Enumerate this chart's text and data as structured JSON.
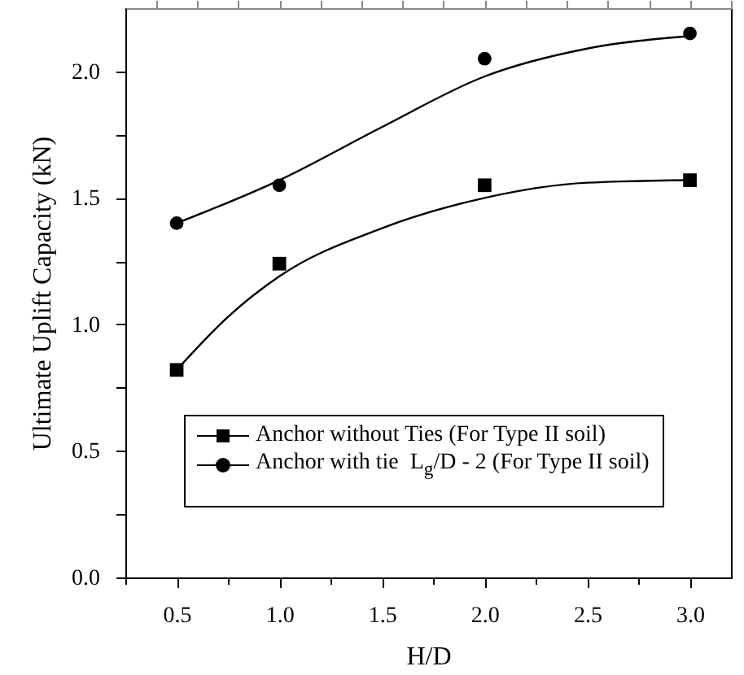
{
  "chart_data": {
    "type": "scatter",
    "xlabel": "H/D",
    "ylabel": "Ultimate Uplift Capacity (kN)",
    "xlim": [
      0.25,
      3.2
    ],
    "ylim": [
      0,
      2.25
    ],
    "xticks": [
      {
        "value": 0.25,
        "label": null
      },
      {
        "value": 0.5,
        "label": "0.5"
      },
      {
        "value": 0.75,
        "label": null
      },
      {
        "value": 1,
        "label": "1.0"
      },
      {
        "value": 1.25,
        "label": null
      },
      {
        "value": 1.5,
        "label": "1.5"
      },
      {
        "value": 1.75,
        "label": null
      },
      {
        "value": 2,
        "label": "2.0"
      },
      {
        "value": 2.25,
        "label": null
      },
      {
        "value": 2.5,
        "label": "2.5"
      },
      {
        "value": 2.75,
        "label": null
      },
      {
        "value": 3,
        "label": "3.0"
      }
    ],
    "yticks": [
      {
        "value": 0,
        "label": "0.0"
      },
      {
        "value": 0.25,
        "label": null
      },
      {
        "value": 0.5,
        "label": "0.5"
      },
      {
        "value": 0.75,
        "label": null
      },
      {
        "value": 1,
        "label": "1.0"
      },
      {
        "value": 1.25,
        "label": null
      },
      {
        "value": 1.5,
        "label": "1.5"
      },
      {
        "value": 1.75,
        "label": null
      },
      {
        "value": 2,
        "label": "2.0"
      }
    ],
    "legend": "bottom",
    "series": [
      {
        "name": "Anchor without Ties (For Type II soil)",
        "type": "scatter",
        "marker": "square",
        "color": "#000000",
        "x": [
          0.5,
          1.0,
          2.0,
          3.0
        ],
        "values": [
          0.82,
          1.24,
          1.55,
          1.57
        ]
      },
      {
        "name": "Anchor with tie  L$_{g}$/D - 2 (For Type II soil)",
        "type": "scatter",
        "marker": "circle",
        "color": "#000000",
        "x": [
          0.5,
          1.0,
          2.0,
          3.0
        ],
        "values": [
          1.4,
          1.55,
          2.05,
          2.15
        ]
      },
      {
        "type": "line",
        "marker": "none",
        "color": "#000000",
        "x": [
          0.5,
          0.75,
          1.0,
          1.5,
          2.0,
          2.5,
          3.0
        ],
        "values": [
          0.82,
          1.03,
          1.19,
          1.38,
          1.5,
          1.56,
          1.57
        ]
      },
      {
        "type": "line",
        "marker": "none",
        "color": "#000000",
        "x": [
          0.5,
          1.0,
          1.5,
          2.0,
          2.5,
          3.0
        ],
        "values": [
          1.4,
          1.57,
          1.78,
          1.98,
          2.09,
          2.14
        ]
      }
    ]
  }
}
